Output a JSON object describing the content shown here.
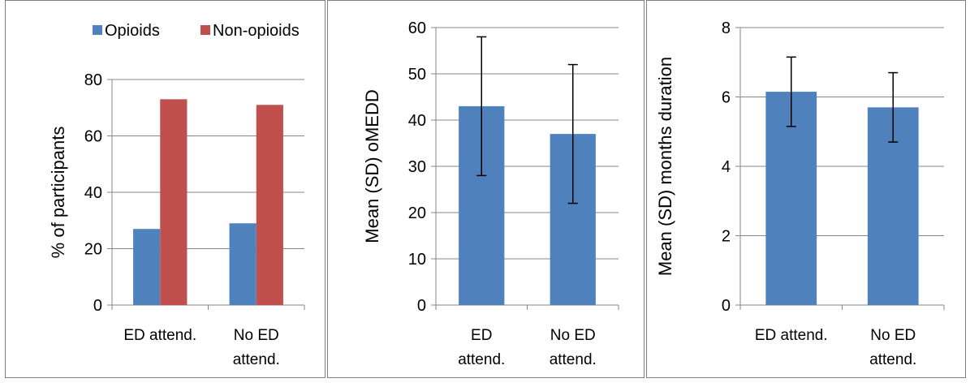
{
  "chart_data": [
    {
      "type": "bar",
      "categories": [
        [
          "ED attend."
        ],
        [
          "No ED",
          "attend."
        ]
      ],
      "series": [
        {
          "name": "Opioids",
          "values": [
            27,
            29
          ],
          "color": "#4f81bd"
        },
        {
          "name": "Non-opioids",
          "values": [
            73,
            71
          ],
          "color": "#c0504d"
        }
      ],
      "ylabel": "% of participants",
      "ylim": [
        0,
        80
      ],
      "yticks": [
        0,
        20,
        40,
        60,
        80
      ],
      "grid": true,
      "legend": "top-right"
    },
    {
      "type": "bar",
      "categories": [
        [
          "ED",
          "attend."
        ],
        [
          "No ED",
          "attend."
        ]
      ],
      "series": [
        {
          "values": [
            43,
            37
          ],
          "error": [
            15,
            15
          ],
          "color": "#4f81bd"
        }
      ],
      "ylabel": "Mean (SD) oMEDD",
      "ylim": [
        0,
        60
      ],
      "yticks": [
        0,
        10,
        20,
        30,
        40,
        50,
        60
      ],
      "grid": true
    },
    {
      "type": "bar",
      "categories": [
        [
          "ED attend."
        ],
        [
          "No ED",
          "attend."
        ]
      ],
      "series": [
        {
          "values": [
            6.15,
            5.7
          ],
          "error": [
            1.0,
            1.0
          ],
          "color": "#4f81bd"
        }
      ],
      "ylabel": "Mean (SD) months duration",
      "ylim": [
        0,
        8
      ],
      "yticks": [
        0,
        2,
        4,
        6,
        8
      ],
      "grid": true
    }
  ]
}
